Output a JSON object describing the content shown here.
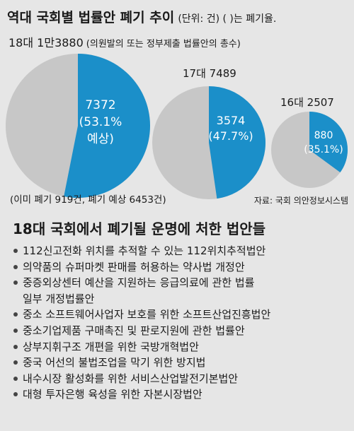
{
  "header": {
    "title": "역대 국회별 법률안 폐기 추이",
    "unit_note": "(단위: 건)  (   )는 폐기율."
  },
  "chart_data": {
    "type": "pie",
    "title": "역대 국회별 법률안 폐기 추이",
    "unit": "(단위: 건)  (   )는 폐기율.",
    "colors": {
      "discarded": "#1b8fc9",
      "rest": "#c7c7c7"
    },
    "charts": [
      {
        "header": "18대  1만3880",
        "header_note": "(의원발의 또는 정부제출 법률안의 총수)",
        "total": 13880,
        "discarded_value": 7372,
        "discarded_rate": 53.1,
        "value_label": "7372",
        "rate_label": "(53.1%",
        "extra_label": "예상)",
        "footnote": "(이미 폐기 919건, 폐기 예상 6453건)"
      },
      {
        "header": "17대  7489",
        "total": 7489,
        "discarded_value": 3574,
        "discarded_rate": 47.7,
        "value_label": "3574",
        "rate_label": "(47.7%)"
      },
      {
        "header": "16대  2507",
        "total": 2507,
        "discarded_value": 880,
        "discarded_rate": 35.1,
        "value_label": "880",
        "rate_label": "(35.1%)"
      }
    ],
    "source": "자료: 국회 의안정보시스템"
  },
  "bills": {
    "title": "18대 국회에서 폐기될 운명에 처한 법안들",
    "items": [
      "112신고전화 위치를 추적할 수 있는 112위치추적법안",
      "의약품의 슈퍼마켓 판매를 허용하는 약사법 개정안",
      "중증외상센터 예산을 지원하는 응급의료에 관한 법률",
      "일부 개정법률안",
      "중소 소프트웨어사업자 보호를 위한 소프트산업진흥법안",
      "중소기업제품 구매촉진 및 판로지원에 관한 법률안",
      "상부지휘구조 개편을 위한 국방개혁법안",
      "중국 어선의 불법조업을 막기 위한 방지법",
      "내수시장 활성화를 위한 서비스산업발전기본법안",
      "대형 투자은행 육성을 위한 자본시장법안"
    ]
  }
}
